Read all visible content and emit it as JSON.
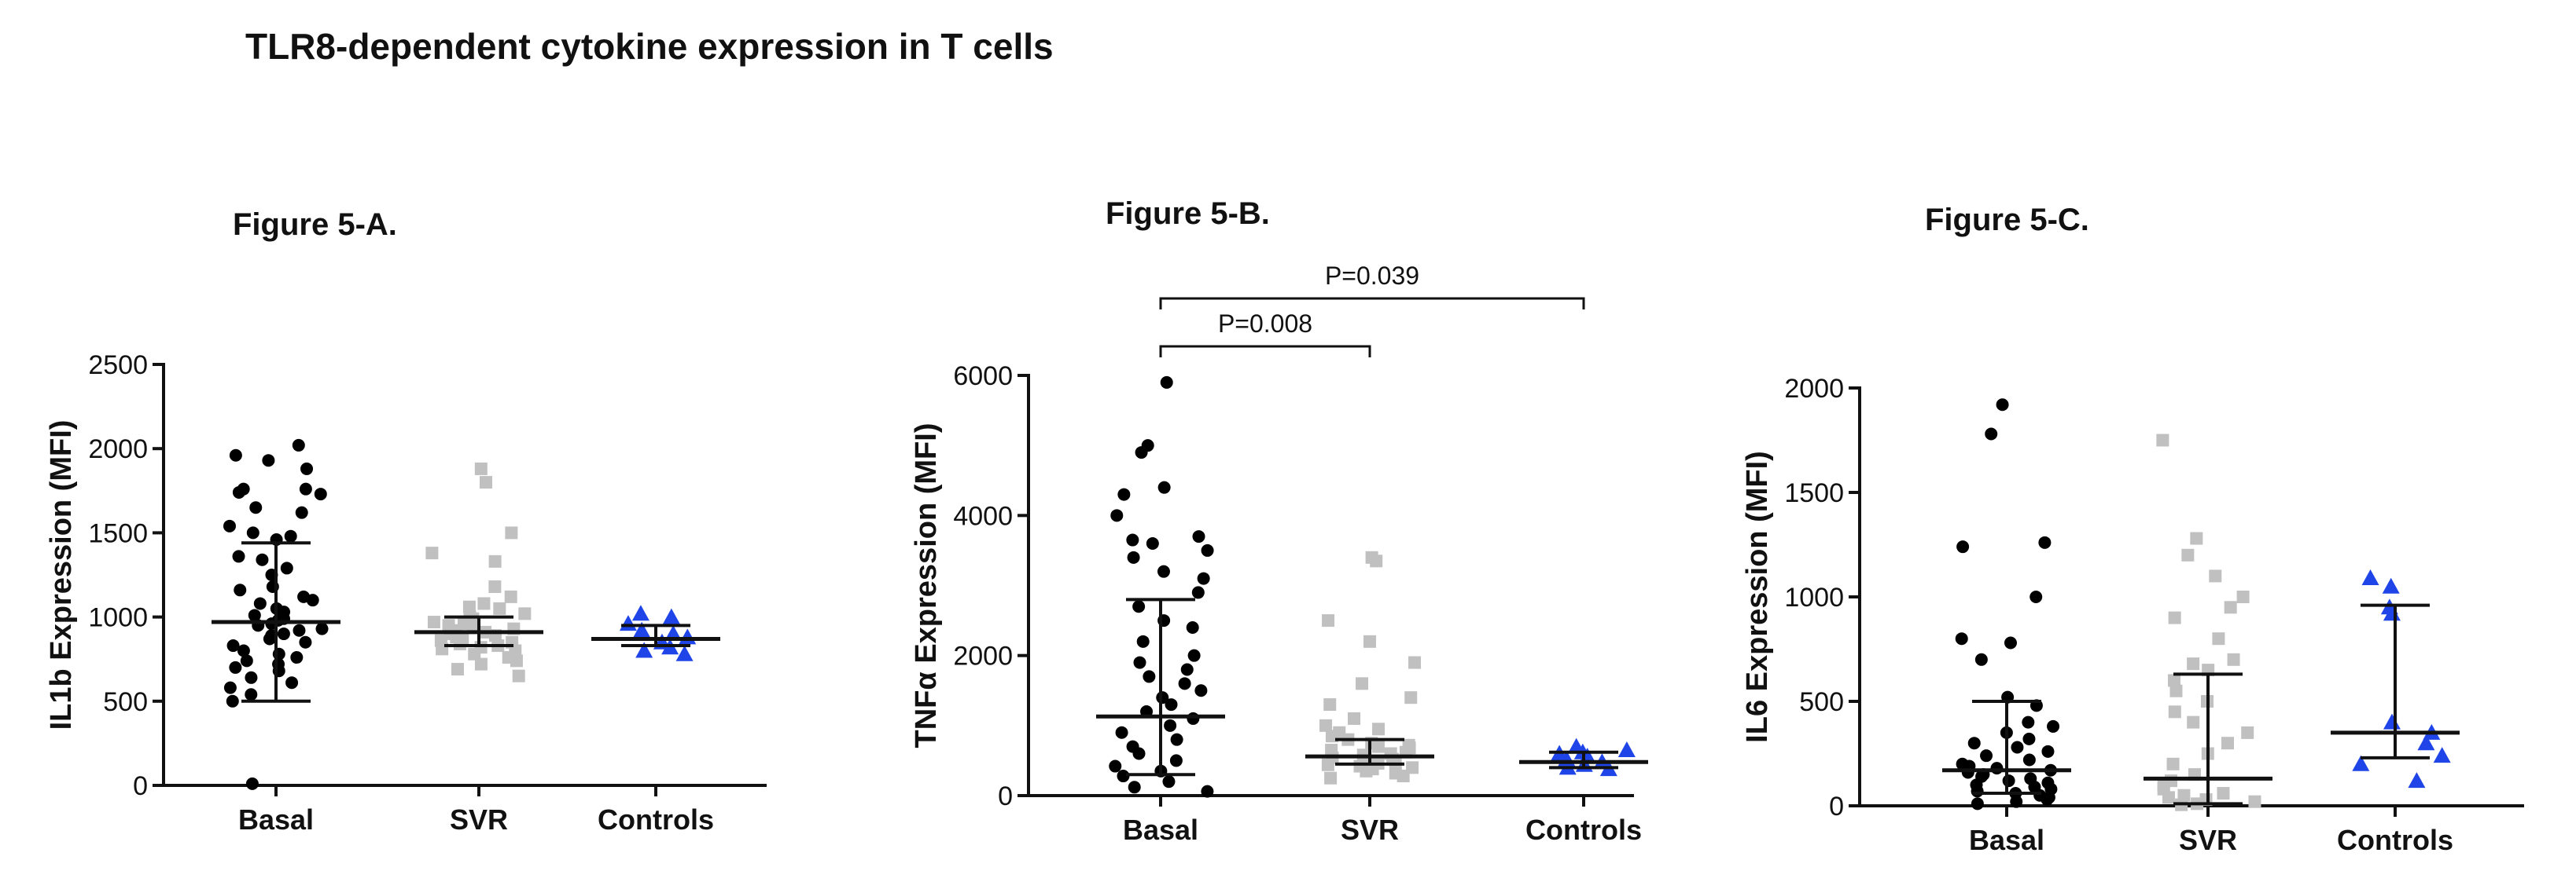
{
  "page_title": "TLR8-dependent cytokine expression in T cells",
  "colors": {
    "basal": "#000000",
    "svr": "#c0c0c0",
    "controls": "#1f45e8",
    "axis": "#111111"
  },
  "chart_data": [
    {
      "type": "scatter",
      "title": "Figure 5-A.",
      "xlabel": "",
      "ylabel": "IL1b Expression (MFI)",
      "categories": [
        "Basal",
        "SVR",
        "Controls"
      ],
      "ylim": [
        0,
        2500
      ],
      "yticks": [
        0,
        500,
        1000,
        1500,
        2000,
        2500
      ],
      "yticklabels": [
        "0",
        "500",
        "1000",
        "1500",
        "2000",
        "2500"
      ],
      "markers": [
        "circle",
        "square",
        "triangle"
      ],
      "series": [
        {
          "name": "Basal",
          "center": 970,
          "err_low": 500,
          "err_high": 1440,
          "values": [
            2020,
            1960,
            1930,
            1880,
            1760,
            1760,
            1740,
            1730,
            1650,
            1620,
            1540,
            1500,
            1480,
            1460,
            1360,
            1340,
            1290,
            1250,
            1180,
            1160,
            1120,
            1100,
            1080,
            1050,
            1030,
            1010,
            990,
            980,
            960,
            950,
            930,
            920,
            900,
            890,
            870,
            850,
            830,
            800,
            780,
            760,
            740,
            720,
            700,
            680,
            640,
            610,
            580,
            540,
            500,
            10
          ]
        },
        {
          "name": "SVR",
          "center": 910,
          "err_low": 830,
          "err_high": 1000,
          "values": [
            1880,
            1800,
            1500,
            1380,
            1330,
            1180,
            1120,
            1080,
            1060,
            1050,
            1020,
            1000,
            990,
            980,
            970,
            960,
            950,
            940,
            930,
            920,
            910,
            900,
            890,
            880,
            870,
            860,
            850,
            840,
            830,
            820,
            810,
            800,
            780,
            760,
            740,
            720,
            690,
            650
          ]
        },
        {
          "name": "Controls",
          "center": 870,
          "err_low": 830,
          "err_high": 950,
          "values": [
            1020,
            1000,
            960,
            920,
            900,
            880,
            850,
            820,
            800,
            780
          ]
        }
      ],
      "annotations": []
    },
    {
      "type": "scatter",
      "title": "Figure 5-B.",
      "xlabel": "",
      "ylabel": "TNFα Expression (MFI)",
      "categories": [
        "Basal",
        "SVR",
        "Controls"
      ],
      "ylim": [
        0,
        6000
      ],
      "yticks": [
        0,
        2000,
        4000,
        6000
      ],
      "yticklabels": [
        "0",
        "2000",
        "4000",
        "6000"
      ],
      "markers": [
        "circle",
        "square",
        "triangle"
      ],
      "series": [
        {
          "name": "Basal",
          "center": 1130,
          "err_low": 300,
          "err_high": 2800,
          "values": [
            5900,
            5000,
            4900,
            4400,
            4300,
            4000,
            3700,
            3650,
            3600,
            3500,
            3400,
            3200,
            3100,
            2900,
            2700,
            2500,
            2400,
            2200,
            2000,
            1900,
            1800,
            1700,
            1600,
            1500,
            1400,
            1300,
            1200,
            1100,
            1000,
            900,
            800,
            700,
            600,
            500,
            420,
            350,
            280,
            200,
            120,
            60
          ]
        },
        {
          "name": "SVR",
          "center": 560,
          "err_low": 450,
          "err_high": 800,
          "values": [
            3400,
            3350,
            2500,
            2200,
            1900,
            1600,
            1400,
            1300,
            1100,
            1000,
            950,
            900,
            850,
            800,
            750,
            720,
            700,
            680,
            650,
            620,
            600,
            580,
            560,
            540,
            520,
            500,
            480,
            460,
            440,
            420,
            400,
            380,
            350,
            320,
            280,
            250
          ]
        },
        {
          "name": "Controls",
          "center": 480,
          "err_low": 400,
          "err_high": 620,
          "values": [
            700,
            650,
            620,
            600,
            560,
            520,
            480,
            440,
            400,
            380
          ]
        }
      ],
      "annotations": [
        {
          "label": "P=0.008",
          "from": 0,
          "to": 1,
          "level": 1
        },
        {
          "label": "P=0.039",
          "from": 0,
          "to": 2,
          "level": 2
        }
      ]
    },
    {
      "type": "scatter",
      "title": "Figure 5-C.",
      "xlabel": "",
      "ylabel": "IL6 Expression (MFI)",
      "categories": [
        "Basal",
        "SVR",
        "Controls"
      ],
      "ylim": [
        0,
        2000
      ],
      "yticks": [
        0,
        500,
        1000,
        1500,
        2000
      ],
      "yticklabels": [
        "0",
        "500",
        "1000",
        "1500",
        "2000"
      ],
      "markers": [
        "circle",
        "square",
        "triangle"
      ],
      "series": [
        {
          "name": "Basal",
          "center": 170,
          "err_low": 60,
          "err_high": 500,
          "values": [
            1920,
            1780,
            1260,
            1240,
            1000,
            800,
            780,
            700,
            520,
            480,
            400,
            380,
            350,
            320,
            300,
            280,
            260,
            240,
            220,
            200,
            190,
            180,
            170,
            160,
            150,
            140,
            130,
            120,
            110,
            100,
            90,
            80,
            70,
            60,
            50,
            40,
            30,
            20,
            10
          ]
        },
        {
          "name": "SVR",
          "center": 130,
          "err_low": 10,
          "err_high": 630,
          "values": [
            1750,
            1280,
            1200,
            1100,
            1000,
            950,
            900,
            800,
            700,
            680,
            650,
            600,
            550,
            500,
            450,
            400,
            350,
            300,
            250,
            200,
            150,
            120,
            100,
            80,
            60,
            50,
            40,
            30,
            20,
            10,
            5
          ]
        },
        {
          "name": "Controls",
          "center": 350,
          "err_low": 230,
          "err_high": 960,
          "values": [
            1090,
            1050,
            950,
            920,
            400,
            350,
            300,
            240,
            200,
            120
          ]
        }
      ],
      "annotations": []
    }
  ]
}
